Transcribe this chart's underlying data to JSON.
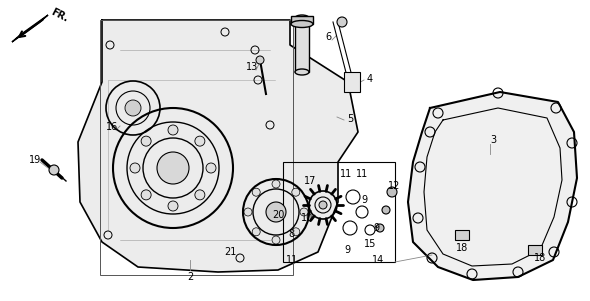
{
  "bg_color": "#ffffff",
  "line_color": "#000000",
  "gray_color": "#888888",
  "figsize": [
    5.9,
    3.01
  ],
  "dpi": 100
}
